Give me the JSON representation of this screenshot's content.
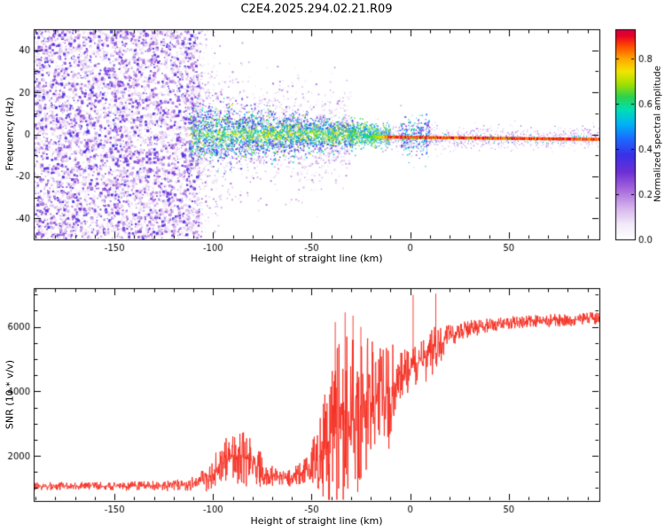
{
  "title": "C2E4.2025.294.02.21.R09",
  "chart_data": [
    {
      "type": "heatmap",
      "title": "C2E4.2025.294.02.21.R09",
      "xlabel": "Height of straight line (km)",
      "ylabel": "Frequency (Hz)",
      "xlim": [
        -191,
        96
      ],
      "ylim": [
        -50,
        50
      ],
      "xticks": [
        -150,
        -100,
        -50,
        0,
        50
      ],
      "xminor_step": 10,
      "yticks": [
        -40,
        -20,
        0,
        20,
        40
      ],
      "yminor_step": 10,
      "seed": 20252941,
      "colorbar": {
        "label": "Normalized spectral amplitude",
        "ticks": [
          0.0,
          0.2,
          0.4,
          0.6,
          0.8
        ],
        "range": [
          0.0,
          0.93
        ],
        "colormap": [
          [
            0.0,
            "#ffffff"
          ],
          [
            0.07,
            "#f3eaf9"
          ],
          [
            0.15,
            "#d4b3ec"
          ],
          [
            0.24,
            "#a565dd"
          ],
          [
            0.32,
            "#6d2fd4"
          ],
          [
            0.4,
            "#3a30e8"
          ],
          [
            0.48,
            "#1b6bff"
          ],
          [
            0.55,
            "#00b4f5"
          ],
          [
            0.62,
            "#00e0b0"
          ],
          [
            0.68,
            "#2ed24d"
          ],
          [
            0.74,
            "#a3e000"
          ],
          [
            0.8,
            "#f2e400"
          ],
          [
            0.86,
            "#ffa800"
          ],
          [
            0.92,
            "#ff4d00"
          ],
          [
            0.97,
            "#ea0025"
          ],
          [
            1.0,
            "#cf0045"
          ]
        ]
      },
      "regions": [
        {
          "kind": "speckle",
          "x": [
            -191,
            -107
          ],
          "freq": "uniform",
          "lo": -49.5,
          "hi": 49.5,
          "amp_base": 0.06,
          "amp_spread": 0.34,
          "amp_pow": 1.8,
          "count": 5200,
          "smin": 1.0,
          "smax": 3.4
        },
        {
          "kind": "speckle",
          "x": [
            -107,
            -95
          ],
          "freq": "uniform",
          "lo": -49.5,
          "hi": 49.5,
          "amp_base": 0.05,
          "amp_spread": 0.22,
          "amp_pow": 2.2,
          "count": 230,
          "smin": 1.0,
          "smax": 2.4,
          "xpow": 2.0
        },
        {
          "kind": "speckle",
          "x": [
            -112,
            -30
          ],
          "freq": "gauss",
          "mu": 0,
          "sigma_start": 16,
          "sigma_end": 10,
          "amp_base": 0.07,
          "amp_spread": 0.16,
          "amp_pow": 1.6,
          "count": 1500,
          "smin": 1.0,
          "smax": 2.2
        },
        {
          "kind": "speckle",
          "x": [
            -112,
            -28
          ],
          "freq": "gauss",
          "mu": 0,
          "sigma_start": 7,
          "sigma_end": 3,
          "amp_base": 0.3,
          "amp_spread": 0.45,
          "amp_pow": 1.3,
          "count": 3000,
          "smin": 0.8,
          "smax": 1.9,
          "center_boost": 0.22
        },
        {
          "kind": "speckle",
          "x": [
            -30,
            -10
          ],
          "freq": "gauss",
          "mu": -0.5,
          "sigma_start": 3.2,
          "sigma_end": 2.2,
          "amp_base": 0.45,
          "amp_spread": 0.35,
          "amp_pow": 1.0,
          "count": 800,
          "smin": 0.8,
          "smax": 1.6
        },
        {
          "kind": "speckle",
          "x": [
            -14,
            96
          ],
          "freq": "gauss",
          "mu": -1.8,
          "sigma_start": 2.8,
          "sigma_end": 2.2,
          "amp_base": 0.1,
          "amp_spread": 0.16,
          "amp_pow": 1.4,
          "count": 1000,
          "smin": 0.8,
          "smax": 1.5
        },
        {
          "kind": "speckle",
          "x": [
            -5,
            10
          ],
          "freq": "gauss",
          "mu": -1.0,
          "sigma_start": 4.5,
          "sigma_end": 4.5,
          "amp_base": 0.25,
          "amp_spread": 0.4,
          "amp_pow": 1.2,
          "count": 280,
          "smin": 0.8,
          "smax": 1.8
        }
      ],
      "ridge": {
        "x": [
          -24,
          96
        ],
        "f_start": -1.2,
        "f_end": -2.4,
        "halfwidth_hz": 0.7,
        "amp_min": 0.88,
        "amp_max": 0.99,
        "ramp_from": -24,
        "ramp_full": -10,
        "fleck_prob": 0.3
      }
    },
    {
      "type": "line",
      "xlabel": "Height of straight line (km)",
      "ylabel": "SNR (10 * v/v)",
      "xlim": [
        -191,
        96
      ],
      "ylim": [
        600,
        7200
      ],
      "xticks": [
        -150,
        -100,
        -50,
        0,
        50
      ],
      "xminor_step": 10,
      "yticks": [
        2000,
        4000,
        6000
      ],
      "yminor_step": 500,
      "series": [
        {
          "name": "SNR",
          "color": "#f52d20",
          "seed": 77,
          "points": 1600,
          "anchors": [
            [
              -191,
              1060,
              130
            ],
            [
              -150,
              1060,
              130
            ],
            [
              -125,
              1070,
              150
            ],
            [
              -112,
              1100,
              180
            ],
            [
              -103,
              1250,
              380
            ],
            [
              -97,
              1600,
              650
            ],
            [
              -91,
              1950,
              850
            ],
            [
              -85,
              2000,
              900
            ],
            [
              -79,
              1750,
              700
            ],
            [
              -73,
              1430,
              400
            ],
            [
              -66,
              1330,
              280
            ],
            [
              -60,
              1340,
              300
            ],
            [
              -54,
              1450,
              420
            ],
            [
              -50,
              1650,
              700
            ],
            [
              -46,
              2000,
              1300
            ],
            [
              -42,
              2400,
              2100
            ],
            [
              -37,
              2750,
              2600
            ],
            [
              -32,
              3000,
              2800
            ],
            [
              -27,
              3300,
              2700
            ],
            [
              -23,
              3650,
              2200
            ],
            [
              -19,
              3950,
              1700
            ],
            [
              -15,
              4150,
              1600
            ],
            [
              -12,
              3650,
              2100
            ],
            [
              -9,
              4150,
              1500
            ],
            [
              -6,
              4400,
              1000
            ],
            [
              -3,
              4550,
              750
            ],
            [
              0,
              4650,
              650
            ],
            [
              4,
              4850,
              620
            ],
            [
              8,
              5050,
              750
            ],
            [
              12,
              5250,
              850
            ],
            [
              16,
              5500,
              550
            ],
            [
              20,
              5720,
              420
            ],
            [
              25,
              5870,
              330
            ],
            [
              30,
              5960,
              270
            ],
            [
              40,
              6060,
              230
            ],
            [
              50,
              6120,
              210
            ],
            [
              60,
              6160,
              200
            ],
            [
              75,
              6210,
              200
            ],
            [
              96,
              6260,
              200
            ]
          ],
          "spikes": [
            [
              -38,
              6150
            ],
            [
              -33,
              6450
            ],
            [
              -29,
              6350
            ],
            [
              -25,
              6000
            ],
            [
              1.5,
              6990
            ],
            [
              13,
              7030
            ]
          ]
        }
      ]
    }
  ]
}
